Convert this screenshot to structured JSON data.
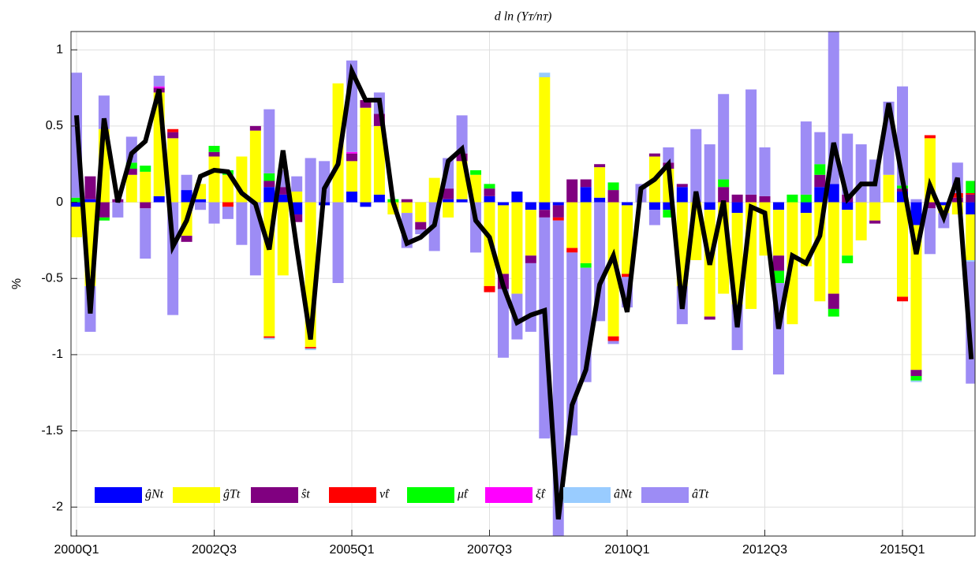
{
  "chart_data": {
    "type": "stacked-bar-line",
    "title": "d ln (Yᴛ/nᴛ)",
    "ylabel": "%",
    "categories": [
      "2000Q1",
      null,
      null,
      null,
      null,
      null,
      null,
      null,
      null,
      null,
      "2002Q3",
      null,
      null,
      null,
      null,
      null,
      null,
      null,
      null,
      null,
      "2005Q1",
      null,
      null,
      null,
      null,
      null,
      null,
      null,
      null,
      null,
      "2007Q3",
      null,
      null,
      null,
      null,
      null,
      null,
      null,
      null,
      null,
      "2010Q1",
      null,
      null,
      null,
      null,
      null,
      null,
      null,
      null,
      null,
      "2012Q3",
      null,
      null,
      null,
      null,
      null,
      null,
      null,
      null,
      null,
      "2015Q1",
      null,
      null,
      null,
      null,
      null
    ],
    "ylim": [
      -2.19,
      1.12
    ],
    "yticks": [
      -2,
      -1.5,
      -1,
      -0.5,
      0,
      0.5,
      1
    ],
    "grid": true,
    "legend": "lower left",
    "series": [
      {
        "name": "ĝNt",
        "color": "#0000ff",
        "values": [
          -0.03,
          0.02,
          0,
          0,
          0,
          0,
          0.04,
          0,
          0.08,
          0.02,
          0,
          0,
          0,
          0,
          0.1,
          0.05,
          -0.08,
          0,
          -0.02,
          0,
          0.07,
          -0.03,
          0.05,
          0,
          0,
          0,
          0,
          0.02,
          0.02,
          0,
          0.04,
          -0.02,
          0.07,
          -0.05,
          -0.05,
          -0.02,
          0,
          0.1,
          0.03,
          0,
          -0.02,
          0,
          -0.05,
          -0.05,
          0.1,
          0,
          -0.05,
          0,
          -0.07,
          0,
          0,
          -0.05,
          0,
          -0.07,
          0.1,
          0.12,
          -0.05,
          0,
          0,
          0,
          0.07,
          -0.15,
          0,
          -0.02,
          0,
          -0.08
        ]
      },
      {
        "name": "ĝTt",
        "color": "#ffff00",
        "values": [
          -0.2,
          -0.55,
          0.48,
          0,
          0.18,
          0.2,
          0.68,
          0.42,
          -0.22,
          0.1,
          0.3,
          0.18,
          0.3,
          0.47,
          -0.88,
          -0.48,
          0.07,
          -0.95,
          0,
          0.78,
          0.2,
          0.62,
          0.45,
          -0.08,
          -0.07,
          -0.13,
          0.16,
          -0.1,
          0.25,
          0.18,
          -0.55,
          -0.45,
          -0.6,
          -0.3,
          0.82,
          0,
          -0.3,
          -0.4,
          0.2,
          -0.88,
          -0.45,
          0,
          0.3,
          0.22,
          -0.55,
          -0.38,
          -0.7,
          -0.6,
          -0.6,
          -0.7,
          -0.35,
          -0.3,
          -0.8,
          -0.35,
          -0.65,
          -0.6,
          -0.3,
          -0.25,
          -0.12,
          0.18,
          -0.62,
          -0.95,
          0.42,
          -0.05,
          -0.08,
          -0.3
        ]
      },
      {
        "name": "ŝt",
        "color": "#800080",
        "values": [
          0,
          0.15,
          -0.1,
          0.02,
          0.04,
          -0.04,
          0.03,
          0.04,
          -0.04,
          0,
          0.03,
          0,
          0,
          0.03,
          0.04,
          0.05,
          -0.05,
          0,
          0,
          0,
          0.05,
          0.05,
          0.08,
          0,
          0.02,
          -0.05,
          0,
          0.07,
          0.05,
          0,
          0.05,
          -0.1,
          0,
          -0.05,
          -0.05,
          -0.08,
          0.15,
          0.05,
          0.02,
          0.08,
          0,
          0,
          0.02,
          0.04,
          0.02,
          0,
          -0.02,
          0.1,
          0.05,
          0.05,
          0.04,
          -0.1,
          0,
          0,
          0.08,
          -0.1,
          0.05,
          0,
          -0.02,
          0,
          0.02,
          -0.04,
          -0.04,
          0,
          0.03,
          0.05
        ]
      },
      {
        "name": "ν̂t",
        "color": "#ff0000",
        "values": [
          0,
          0,
          0,
          0,
          0,
          0,
          0,
          0.02,
          0,
          0,
          0,
          -0.03,
          0,
          0,
          -0.01,
          0,
          0,
          -0.01,
          0,
          0,
          0,
          0,
          0,
          0,
          0,
          0,
          0,
          0,
          0,
          0,
          -0.04,
          0,
          0,
          0,
          0,
          -0.02,
          -0.03,
          0,
          0,
          -0.03,
          -0.02,
          0,
          0,
          0,
          0,
          0,
          0,
          0,
          0,
          0,
          0,
          0,
          0,
          0,
          0,
          0,
          0,
          0,
          0,
          0,
          -0.03,
          0,
          0.02,
          0,
          0.03,
          0.01
        ]
      },
      {
        "name": "μ̂t",
        "color": "#00ff00",
        "values": [
          0.03,
          0,
          -0.02,
          0,
          0.04,
          0.04,
          0,
          0,
          0,
          0,
          0.04,
          0.03,
          0,
          0,
          0.05,
          0,
          0,
          0,
          0,
          0,
          0,
          0,
          0,
          0.02,
          0,
          0,
          0,
          0,
          0,
          0.03,
          0.03,
          0,
          0,
          0,
          0,
          0,
          0,
          -0.03,
          0,
          0.05,
          0,
          0,
          0,
          -0.05,
          0,
          0,
          0,
          0.05,
          0,
          0,
          0,
          -0.08,
          0.05,
          0.05,
          0.07,
          -0.05,
          -0.05,
          0,
          0,
          0,
          0.02,
          -0.03,
          0,
          0,
          0,
          0.08
        ]
      },
      {
        "name": "ξ̂t",
        "color": "#ff00ff",
        "values": [
          0,
          0,
          0,
          0,
          0,
          0,
          0.01,
          0,
          0,
          0,
          0,
          0,
          0,
          0,
          0,
          0,
          0,
          0,
          0,
          0,
          0.01,
          0,
          0,
          0,
          0,
          0,
          0,
          0,
          0,
          0,
          0,
          0,
          0,
          0,
          0,
          0,
          0,
          0,
          0,
          0,
          0,
          0,
          0,
          0,
          0,
          0,
          0,
          0,
          0,
          0,
          0,
          0,
          0,
          0,
          0,
          0,
          0,
          0,
          0,
          0,
          0,
          0,
          0,
          0,
          0,
          0
        ]
      },
      {
        "name": "âNt",
        "color": "#99ccff",
        "values": [
          0,
          0,
          0,
          0,
          0,
          0,
          0,
          0,
          0,
          0,
          0,
          0,
          0,
          0,
          -0.01,
          0,
          0,
          -0.01,
          0,
          0,
          0,
          0,
          0,
          0,
          0,
          0,
          0,
          0,
          0,
          0,
          0,
          0,
          0,
          0,
          0.03,
          0,
          0,
          0,
          0,
          0,
          0,
          0,
          0,
          0,
          0,
          0,
          0,
          0,
          0,
          0,
          0,
          0,
          0,
          0,
          0,
          0,
          0,
          0,
          0,
          0,
          0,
          -0.01,
          0,
          0,
          0,
          -0.01
        ]
      },
      {
        "name": "âTt",
        "color": "#9d8cf5",
        "values": [
          0.82,
          -0.3,
          0.22,
          -0.1,
          0.17,
          -0.33,
          0.07,
          -0.74,
          0.1,
          -0.05,
          -0.14,
          -0.08,
          -0.28,
          -0.48,
          0.42,
          0.11,
          0.1,
          0.29,
          0.27,
          -0.53,
          0.6,
          0,
          0.14,
          0,
          -0.23,
          -0.03,
          -0.32,
          0.2,
          0.25,
          -0.33,
          0,
          -0.45,
          -0.3,
          -0.45,
          -1.45,
          -2.08,
          -1.2,
          -0.75,
          -0.78,
          -0.02,
          -0.2,
          0.12,
          -0.1,
          0.1,
          -0.25,
          0.48,
          0.38,
          0.56,
          -0.3,
          0.69,
          0.32,
          -0.6,
          0,
          0.48,
          0.21,
          1.0,
          0.4,
          0.38,
          0.28,
          0.48,
          0.65,
          0.02,
          -0.3,
          -0.1,
          0.2,
          -0.8
        ]
      }
    ],
    "line": {
      "color": "#000000",
      "values": [
        0.57,
        -0.73,
        0.55,
        0,
        0.32,
        0.4,
        0.74,
        -0.29,
        -0.12,
        0.17,
        0.21,
        0.2,
        0.06,
        -0.01,
        -0.31,
        0.34,
        -0.3,
        -0.9,
        0.09,
        0.25,
        0.86,
        0.67,
        0.67,
        0,
        -0.27,
        -0.23,
        -0.15,
        0.27,
        0.35,
        -0.12,
        -0.23,
        -0.55,
        -0.79,
        -0.74,
        -0.71,
        -2.08,
        -1.33,
        -1.1,
        -0.54,
        -0.35,
        -0.72,
        0.09,
        0.15,
        0.25,
        -0.7,
        0.07,
        -0.41,
        0.01,
        -0.82,
        -0.03,
        -0.07,
        -0.83,
        -0.35,
        -0.4,
        -0.22,
        0.39,
        0.02,
        0.12,
        0.12,
        0.65,
        0.15,
        -0.34,
        0.11,
        -0.1,
        0.16,
        -1.03
      ]
    }
  }
}
